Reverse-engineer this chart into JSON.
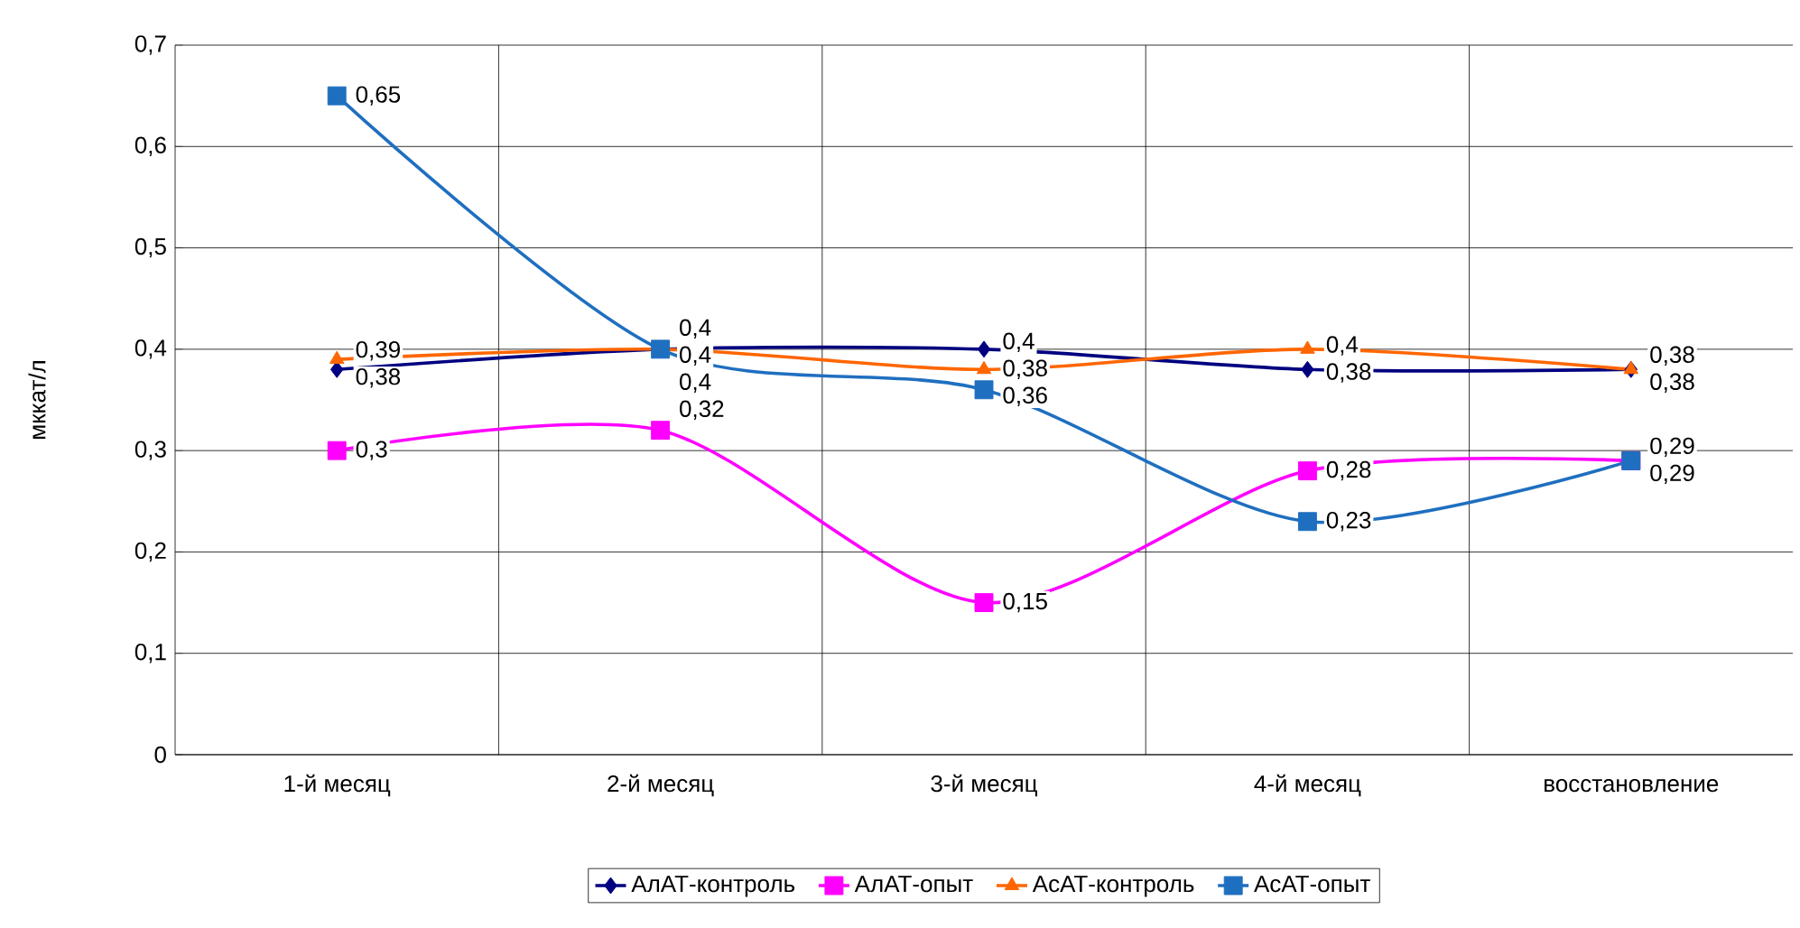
{
  "chart_data": {
    "type": "line",
    "ylabel": "мккат/л",
    "categories": [
      "1-й месяц",
      "2-й месяц",
      "3-й месяц",
      "4-й месяц",
      "восстановление"
    ],
    "series": [
      {
        "name": "АлАТ-контроль",
        "color": "#000080",
        "marker": "diamond",
        "values": [
          0.38,
          0.4,
          0.4,
          0.38,
          0.38
        ],
        "value_labels": [
          "0,38",
          "0,4",
          "0,4",
          "0,38",
          "0,38"
        ]
      },
      {
        "name": "АлАТ-опыт",
        "color": "#ff00ff",
        "marker": "square",
        "values": [
          0.3,
          0.32,
          0.15,
          0.28,
          0.29
        ],
        "value_labels": [
          "0,3",
          "0,32",
          "0,15",
          "0,28",
          "0,29"
        ]
      },
      {
        "name": "АсАТ-контроль",
        "color": "#ff6600",
        "marker": "triangle",
        "values": [
          0.39,
          0.4,
          0.38,
          0.4,
          0.38
        ],
        "value_labels": [
          "0,39",
          "0,4",
          "0,38",
          "0,4",
          "0,38"
        ]
      },
      {
        "name": "АсАТ-опыт",
        "color": "#1f6fc0",
        "marker": "square",
        "values": [
          0.65,
          0.4,
          0.36,
          0.23,
          0.29
        ],
        "value_labels": [
          "0,65",
          "0,4",
          "0,36",
          "0,23",
          "0,29"
        ]
      }
    ],
    "ylim": [
      0,
      0.7
    ],
    "yticks": [
      0,
      {
        "value": 0.1,
        "label": "0,1"
      },
      {
        "value": 0.2,
        "label": "0,2"
      },
      {
        "value": 0.3,
        "label": "0,3"
      },
      {
        "value": 0.4,
        "label": "0,4"
      },
      {
        "value": 0.5,
        "label": "0,5"
      },
      {
        "value": 0.6,
        "label": "0,6"
      },
      {
        "value": 0.7,
        "label": "0,7"
      }
    ],
    "grid": true,
    "legend": "bottom",
    "line_style": "solid"
  }
}
